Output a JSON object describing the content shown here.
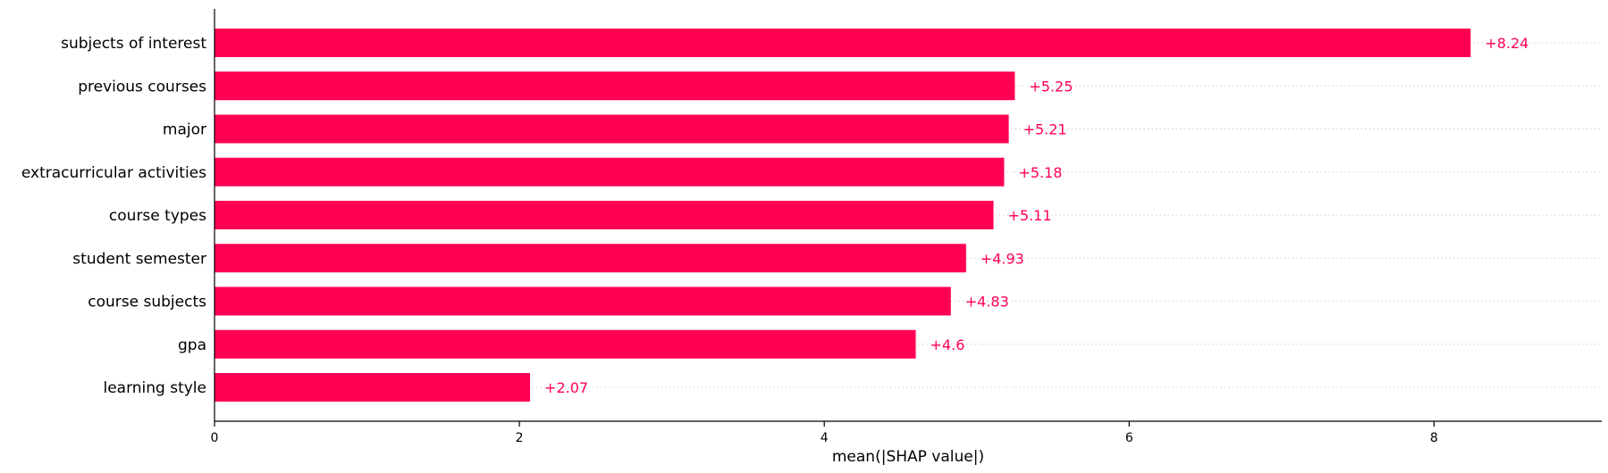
{
  "chart_data": {
    "type": "bar",
    "orientation": "horizontal",
    "categories": [
      "subjects of interest",
      "previous courses",
      "major",
      "extracurricular activities",
      "course types",
      "student semester",
      "course subjects",
      "gpa",
      "learning style"
    ],
    "values": [
      8.24,
      5.25,
      5.21,
      5.18,
      5.11,
      4.93,
      4.83,
      4.6,
      2.07
    ],
    "value_labels": [
      "+8.24",
      "+5.25",
      "+5.21",
      "+5.18",
      "+5.11",
      "+4.93",
      "+4.83",
      "+4.6",
      "+2.07"
    ],
    "xlabel": "mean(|SHAP value|)",
    "ylabel": "",
    "title": "",
    "xlim": [
      0,
      9.1
    ],
    "xticks": [
      0,
      2,
      4,
      6,
      8
    ],
    "grid": "dotted horizontal row guides",
    "bar_color": "#ff0052",
    "label_color": "#ff0052",
    "axis_color": "#000000",
    "guide_color": "#cccccc"
  }
}
